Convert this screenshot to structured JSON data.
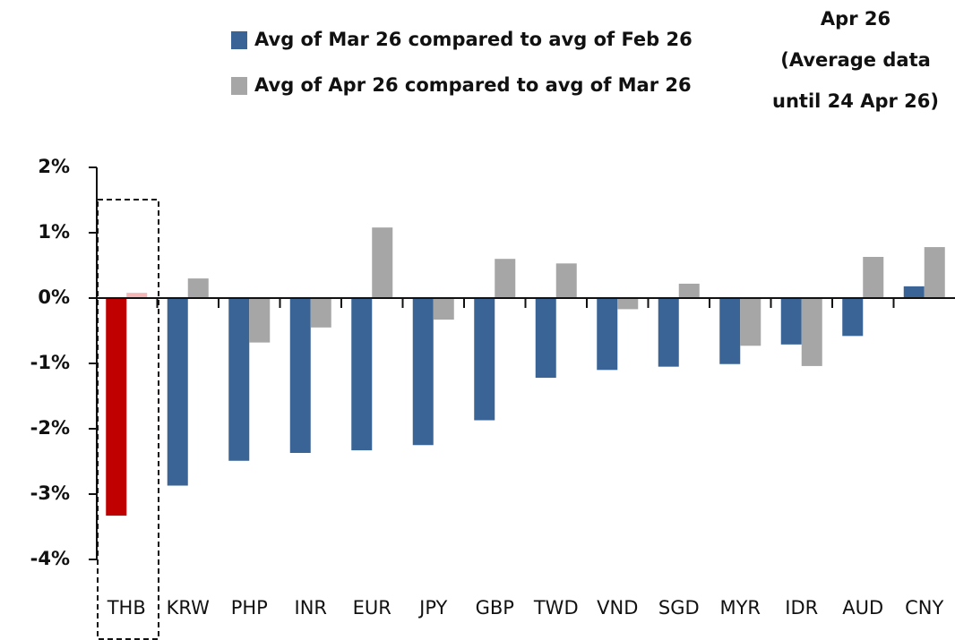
{
  "chart_data": {
    "type": "bar",
    "annotation": [
      "Apr 26",
      "(Average data",
      "until 24 Apr 26)"
    ],
    "categories": [
      "THB",
      "KRW",
      "PHP",
      "INR",
      "EUR",
      "JPY",
      "GBP",
      "TWD",
      "VND",
      "SGD",
      "MYR",
      "IDR",
      "AUD",
      "CNY"
    ],
    "series": [
      {
        "name": "Avg of Mar 26 compared to avg of Feb 26",
        "color": "#3a6496",
        "colors": [
          "#c00000",
          "#3a6496",
          "#3a6496",
          "#3a6496",
          "#3a6496",
          "#3a6496",
          "#3a6496",
          "#3a6496",
          "#3a6496",
          "#3a6496",
          "#3a6496",
          "#3a6496",
          "#3a6496",
          "#3a6496"
        ],
        "values": [
          -3.33,
          -2.87,
          -2.49,
          -2.37,
          -2.33,
          -2.25,
          -1.87,
          -1.22,
          -1.1,
          -1.05,
          -1.01,
          -0.71,
          -0.58,
          0.18
        ]
      },
      {
        "name": "Avg of Apr 26 compared to avg of Mar 26",
        "color": "#a6a6a6",
        "colors": [
          "#f4b6b6",
          "#a6a6a6",
          "#a6a6a6",
          "#a6a6a6",
          "#a6a6a6",
          "#a6a6a6",
          "#a6a6a6",
          "#a6a6a6",
          "#a6a6a6",
          "#a6a6a6",
          "#a6a6a6",
          "#a6a6a6",
          "#a6a6a6",
          "#a6a6a6"
        ],
        "values": [
          0.08,
          0.3,
          -0.68,
          -0.45,
          1.08,
          -0.33,
          0.6,
          0.53,
          -0.17,
          0.22,
          -0.73,
          -1.04,
          0.63,
          0.78
        ]
      }
    ],
    "ylim": [
      -4,
      2
    ],
    "yticks": [
      {
        "value": -4,
        "label": "-4%"
      },
      {
        "value": -3,
        "label": "-3%"
      },
      {
        "value": -2,
        "label": "-2%"
      },
      {
        "value": -1,
        "label": "-1%"
      },
      {
        "value": 0,
        "label": "0%"
      },
      {
        "value": 1,
        "label": "1%"
      },
      {
        "value": 2,
        "label": "2%"
      }
    ],
    "grid": false
  }
}
